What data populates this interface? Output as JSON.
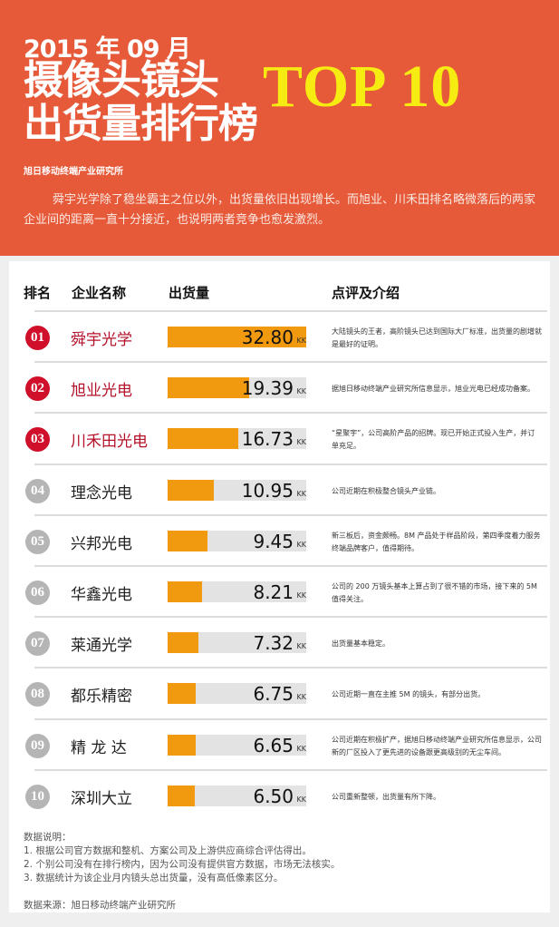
{
  "header": {
    "title_date": "2015 年 09 月",
    "title_line1": "摄像头镜头",
    "title_line2": "出货量排行榜",
    "badge": "TOP 10",
    "org": "旭日移动终端产业研究所",
    "intro": "舜宇光学除了稳坐霸主之位以外，出货量依旧出现增长。而旭业、川禾田排名略微落后的两家企业间的距离一直十分接近，也说明两者竞争也愈发激烈。"
  },
  "columns": {
    "rank": "排名",
    "company": "企业名称",
    "shipment": "出货量",
    "comment": "点评及介绍"
  },
  "colors": {
    "top3": "#d0102a",
    "others": "#b5b5b5",
    "bar": "#f29a0f",
    "header_bg": "#e65a3a"
  },
  "chart_data": {
    "type": "bar",
    "orientation": "horizontal",
    "unit": "KK",
    "xlim": [
      0,
      32.8
    ],
    "categories": [
      "舜宇光学",
      "旭业光电",
      "川禾田光电",
      "理念光电",
      "兴邦光电",
      "华鑫光电",
      "莱通光学",
      "都乐精密",
      "精 龙 达",
      "深圳大立"
    ],
    "values": [
      32.8,
      19.39,
      16.73,
      10.95,
      9.45,
      8.21,
      7.32,
      6.75,
      6.65,
      6.5
    ],
    "rows": [
      {
        "rank": "01",
        "name": "舜宇光学",
        "value": "32.80",
        "unit": "KK",
        "note": "大陆镜头的王者，高阶镜头已达到国际大厂标准，出货量的剧增就是最好的证明。"
      },
      {
        "rank": "02",
        "name": "旭业光电",
        "value": "19.39",
        "unit": "KK",
        "note": "据旭日移动终端产业研究所信息显示，旭业光电已经成功备案。"
      },
      {
        "rank": "03",
        "name": "川禾田光电",
        "value": "16.73",
        "unit": "KK",
        "note": "“星聚宇”，公司高阶产品的招牌。现已开始正式投入生产，并订单充足。"
      },
      {
        "rank": "04",
        "name": "理念光电",
        "value": "10.95",
        "unit": "KK",
        "note": "公司近期在积极整合镜头产业链。"
      },
      {
        "rank": "05",
        "name": "兴邦光电",
        "value": "9.45",
        "unit": "KK",
        "note": "新三板后，资金颇畅。8M 产品处于样品阶段，第四季度着力服务终端品牌客户，值得期待。"
      },
      {
        "rank": "06",
        "name": "华鑫光电",
        "value": "8.21",
        "unit": "KK",
        "note": "公司的 200 万镜头基本上算占到了很不错的市场，接下来的 5M 值得关注。"
      },
      {
        "rank": "07",
        "name": "莱通光学",
        "value": "7.32",
        "unit": "KK",
        "note": "出货量基本稳定。"
      },
      {
        "rank": "08",
        "name": "都乐精密",
        "value": "6.75",
        "unit": "KK",
        "note": "公司近期一直在主推 5M 的镜头，有部分出货。"
      },
      {
        "rank": "09",
        "name": "精 龙 达",
        "value": "6.65",
        "unit": "KK",
        "note": "公司近期在积极扩产，据旭日移动终端产业研究所信息显示，公司新的厂区投入了更先进的设备跟更高级别的无尘车间。"
      },
      {
        "rank": "10",
        "name": "深圳大立",
        "value": "6.50",
        "unit": "KK",
        "note": "公司重新整顿，出货量有所下降。"
      }
    ]
  },
  "footer": {
    "title": "数据说明：",
    "notes": [
      "1. 根据公司官方数据和整机、方案公司及上游供应商综合评估得出。",
      "2. 个别公司没有在排行榜内，因为公司没有提供官方数据，市场无法核实。",
      "3. 数据统计为该企业月内镜头总出货量，没有高低像素区分。"
    ],
    "source": "数据来源：旭日移动终端产业研究所"
  }
}
